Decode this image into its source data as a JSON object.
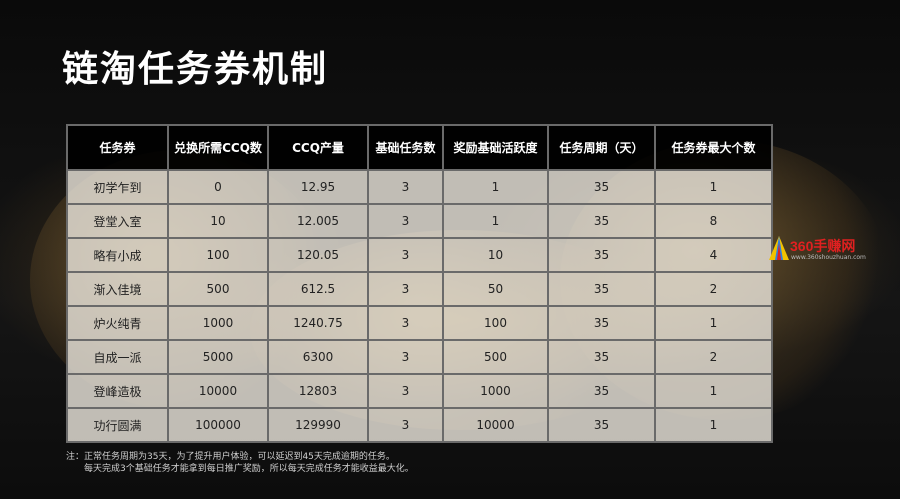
{
  "title": "链淘任务券机制",
  "table": {
    "headers": [
      "任务券",
      "兑换所需CCQ数",
      "CCQ产量",
      "基础任务数",
      "奖励基础活跃度",
      "任务周期（天）",
      "任务券最大个数"
    ],
    "rows": [
      [
        "初学乍到",
        "0",
        "12.95",
        "3",
        "1",
        "35",
        "1"
      ],
      [
        "登堂入室",
        "10",
        "12.005",
        "3",
        "1",
        "35",
        "8"
      ],
      [
        "略有小成",
        "100",
        "120.05",
        "3",
        "10",
        "35",
        "4"
      ],
      [
        "渐入佳境",
        "500",
        "612.5",
        "3",
        "50",
        "35",
        "2"
      ],
      [
        "炉火纯青",
        "1000",
        "1240.75",
        "3",
        "100",
        "35",
        "1"
      ],
      [
        "自成一派",
        "5000",
        "6300",
        "3",
        "500",
        "35",
        "2"
      ],
      [
        "登峰造极",
        "10000",
        "12803",
        "3",
        "1000",
        "35",
        "1"
      ],
      [
        "功行圆满",
        "100000",
        "129990",
        "3",
        "10000",
        "35",
        "1"
      ]
    ]
  },
  "watermark": {
    "brand": "360手赚网",
    "url": "www.360shouzhuan.com"
  },
  "note": {
    "line1": "注：正常任务周期为35天，为了提升用户体验，可以延迟到45天完成逾期的任务。",
    "line2": "每天完成3个基础任务才能拿到每日推广奖励，所以每天完成任务才能收益最大化。"
  },
  "colors": {
    "header_bg": "#000000",
    "cell_bg": "#eee8de",
    "grid": "#6a6a6a",
    "watermark_red": "#e02020"
  }
}
